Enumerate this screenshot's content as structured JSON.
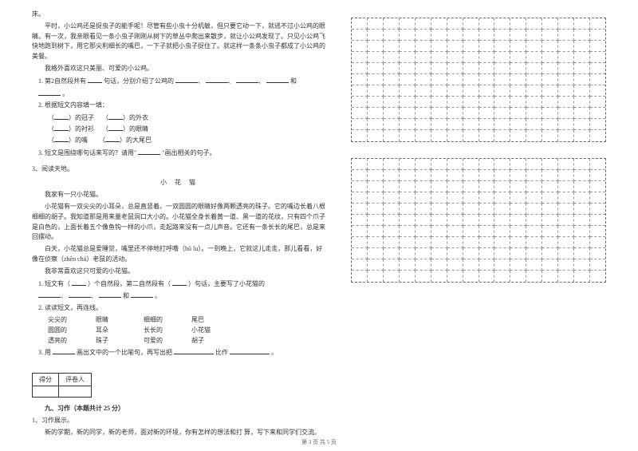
{
  "story1": {
    "line0": "床。",
    "line1": "平时，小公鸡还是捉虫子的能手呢！尽管有些小虫十分机敏，但只要它动一下，就逃不过小公鸡的眼睛。有一次，我亲眼看见一条小虫子刚刚从树下的草丛中爬出来散步，就让小公鸡发现了。只见小公鸡飞快地跑到树下，用它那尖利细长的嘴巴，一下子就把小虫子捉住了。就这样一条条小虫子都成了小公鸡的美餐。",
    "line2": "我格外喜欢这只美丽、可爱的小公鸡。",
    "q1": "1. 第2自然段共有",
    "q1b": "句话，分别介绍了公鸡的",
    "q1end": "和",
    "period": "。",
    "q2": "2. 根据短文内容填一填：",
    "q2a": "）的冠子",
    "q2b": "）的外衣",
    "q2c": "）的衬衫",
    "q2d": "）的眼睛",
    "q2e": "）的嘴",
    "q2f": "）的大尾巴",
    "q3": "3. 短文是围绕哪句话来写的？请用\"",
    "q3b": "\"画出相关的句子。"
  },
  "reading3": {
    "head": "3、阅读天地。",
    "title": "小 花 猫",
    "p1": "我家有一只小花猫。",
    "p2": "小花猫有一双尖尖的小耳朵，总是直竖着。一双圆圆的眼睛好像两颗透亮的珠子。它的嘴边长着八根细细的胡子。我知道那是用来量老鼠洞口大小的。小花猫全身长着黄一道、黑一道的花纹，只有四个爪子是白色的，上面长着五个像鱼钩一样的小爪，走起路来没有一点儿声音。它还有一条长长的尾巴，总是来回摆动。",
    "p3": "白天，小花猫总是爱睡觉，嘴里还不停地打呼噜（hū lu）。一到晚上，它就这儿走走，那儿看看，好像在侦察（zhēn chá）老鼠的活动。",
    "p4": "我非常喜欢这只可爱的小花猫。",
    "q1a": "1. 短文有（",
    "q1b": "）个自然段，第二自然段有（",
    "q1c": "）句话，主要写了小花猫的",
    "q1and": "和",
    "period": "。",
    "q2": "2. 读读短文，再连线。",
    "m1a": "尖尖的",
    "m1b": "眼睛",
    "m1c": "细细的",
    "m1d": "尾巴",
    "m2a": "圆圆的",
    "m2b": "耳朵",
    "m2c": "长长的",
    "m2d": "小花猫",
    "m3a": "透亮的",
    "m3b": "珠子",
    "m3c": "可爱的",
    "m3d": "胡子",
    "q3a": "3. 用",
    "q3b": "画出文中的一个比喻句，再写出把",
    "q3c": "比作",
    "q3d": "。"
  },
  "score": {
    "c1": "得分",
    "c2": "评卷人"
  },
  "section9": {
    "title": "九、习作（本题共计 25 分）",
    "q1": "1、习作展示。",
    "body": "新的学期，新的同学，新的老师，面对新的环境，你有怎样的想法和打 算，写下来和同学们交流。"
  },
  "grids": {
    "rows1": 11,
    "rows2": 11,
    "cols": 16
  },
  "footer": "第 3 页 共 5 页"
}
